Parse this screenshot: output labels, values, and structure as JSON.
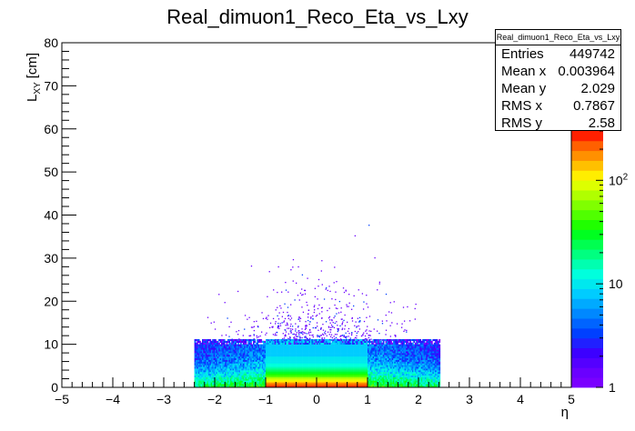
{
  "chart_data": {
    "type": "heatmap",
    "title": "Real_dimuon1_Reco_Eta_vs_Lxy",
    "xlabel": "η",
    "ylabel_main": "L",
    "ylabel_sub": "XY",
    "ylabel_unit": "[cm]",
    "xlim": [
      -5,
      5
    ],
    "ylim": [
      0,
      80
    ],
    "x_ticks": [
      "−5",
      "−4",
      "−3",
      "−2",
      "−1",
      "0",
      "1",
      "2",
      "3",
      "4",
      "5"
    ],
    "x_tick_values": [
      -5,
      -4,
      -3,
      -2,
      -1,
      0,
      1,
      2,
      3,
      4,
      5
    ],
    "y_ticks": [
      "0",
      "10",
      "20",
      "30",
      "40",
      "50",
      "60",
      "70",
      "80"
    ],
    "y_tick_values": [
      0,
      10,
      20,
      30,
      40,
      50,
      60,
      70,
      80
    ],
    "colorbar": {
      "scale": "log",
      "range": [
        1,
        300
      ],
      "labels": [
        {
          "value": 1,
          "base": "1",
          "exp": ""
        },
        {
          "value": 10,
          "base": "10",
          "exp": ""
        },
        {
          "value": 100,
          "base": "10",
          "exp": "2"
        }
      ],
      "colors": [
        "#7a00ff",
        "#6a00ff",
        "#5400ff",
        "#3c00ff",
        "#2020ff",
        "#0040ff",
        "#0064ff",
        "#0088ff",
        "#00aaff",
        "#00ccff",
        "#00e8ee",
        "#00ffdd",
        "#00ffb0",
        "#00ff80",
        "#00ff50",
        "#00ff20",
        "#20ff00",
        "#50ff00",
        "#80ff00",
        "#b0ff00",
        "#ddff00",
        "#ffee00",
        "#ffc000",
        "#ff9000",
        "#ff6000",
        "#ff2000"
      ]
    },
    "regions": [
      {
        "x": [
          -2.4,
          -1.0
        ],
        "y": [
          0,
          11
        ],
        "level": "sparse-blue"
      },
      {
        "x": [
          1.0,
          2.4
        ],
        "y": [
          0,
          11
        ],
        "level": "sparse-blue"
      },
      {
        "x": [
          -1.0,
          1.0
        ],
        "y": [
          0,
          11
        ],
        "level": "dense-cyan-green"
      },
      {
        "x": [
          -1.0,
          1.0
        ],
        "y": [
          0,
          2
        ],
        "level": "peak-yellow-red"
      }
    ],
    "stats": {
      "name": "Real_dimuon1_Reco_Eta_vs_Lxy",
      "rows": [
        {
          "label": "Entries",
          "value": "449742"
        },
        {
          "label": "Mean x",
          "value": "0.003964"
        },
        {
          "label": "Mean y",
          "value": "2.029"
        },
        {
          "label": "RMS x",
          "value": "0.7867"
        },
        {
          "label": "RMS y",
          "value": "2.58"
        }
      ]
    }
  }
}
